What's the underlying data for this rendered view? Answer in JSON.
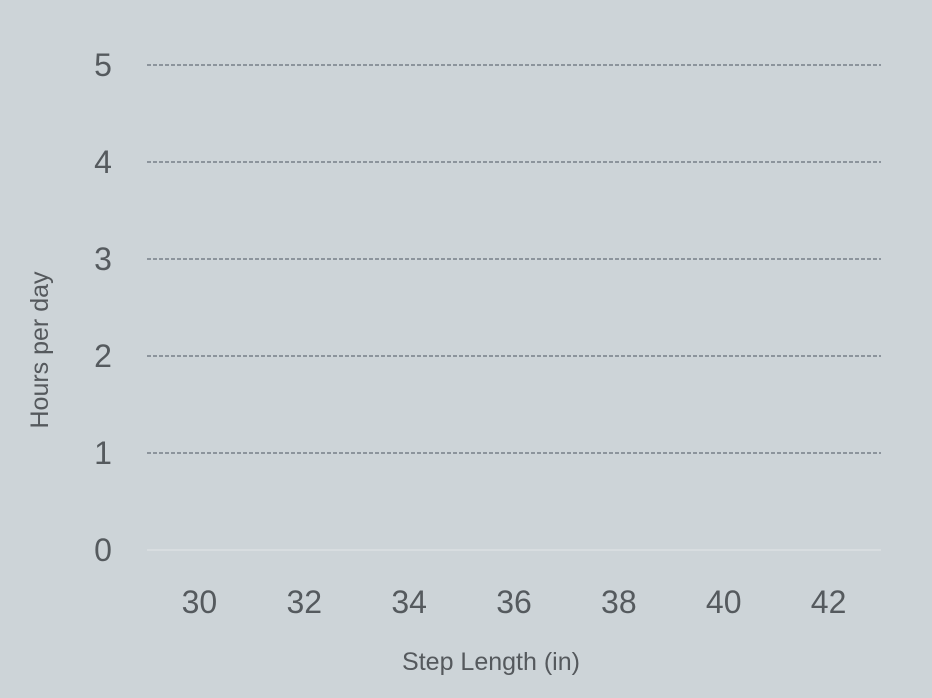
{
  "chart_data": {
    "type": "line",
    "title": "",
    "xlabel": "Step Length (in)",
    "ylabel": "Hours per day",
    "x_ticks": [
      30,
      32,
      34,
      36,
      38,
      40,
      42
    ],
    "y_ticks": [
      0,
      1,
      2,
      3,
      4,
      5
    ],
    "xlim": [
      29,
      43
    ],
    "ylim": [
      0,
      5
    ],
    "grid": "horizontal dashed",
    "series": []
  },
  "colors": {
    "background": "#cdd4d8",
    "gridline": "#4a5560",
    "baseline": "#e2e6e8",
    "text": "#555a5e"
  }
}
